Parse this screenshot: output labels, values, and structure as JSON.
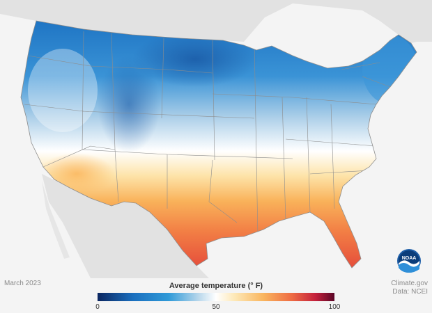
{
  "map": {
    "date_label": "March 2023",
    "source_line1": "Climate.gov",
    "source_line2": "Data: NCEI",
    "legend": {
      "title": "Average temperature (° F)",
      "ticks": [
        "0",
        "50",
        "100"
      ],
      "range": [
        0,
        100
      ]
    },
    "logo_text": "NOAA",
    "colors": {
      "cold": "#0b2660",
      "cool": "#2f9ad8",
      "neutral": "#ffffff",
      "warm": "#f9b55e",
      "hot": "#5a0627"
    }
  }
}
